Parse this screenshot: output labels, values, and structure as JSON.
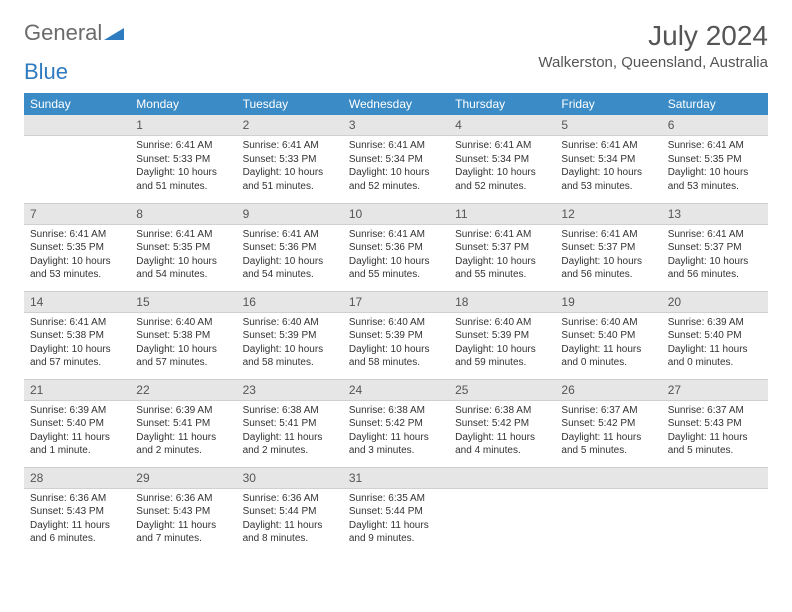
{
  "logo": {
    "word1": "General",
    "word2": "Blue"
  },
  "title": "July 2024",
  "location": "Walkerston, Queensland, Australia",
  "colors": {
    "header_bg": "#3b8bc6",
    "header_fg": "#ffffff",
    "daynum_bg": "#e6e6e6",
    "text": "#333333",
    "title": "#555555"
  },
  "weekdays": [
    "Sunday",
    "Monday",
    "Tuesday",
    "Wednesday",
    "Thursday",
    "Friday",
    "Saturday"
  ],
  "weeks": [
    [
      {
        "n": "",
        "sunrise": "",
        "sunset": "",
        "daylight": ""
      },
      {
        "n": "1",
        "sunrise": "Sunrise: 6:41 AM",
        "sunset": "Sunset: 5:33 PM",
        "daylight": "Daylight: 10 hours and 51 minutes."
      },
      {
        "n": "2",
        "sunrise": "Sunrise: 6:41 AM",
        "sunset": "Sunset: 5:33 PM",
        "daylight": "Daylight: 10 hours and 51 minutes."
      },
      {
        "n": "3",
        "sunrise": "Sunrise: 6:41 AM",
        "sunset": "Sunset: 5:34 PM",
        "daylight": "Daylight: 10 hours and 52 minutes."
      },
      {
        "n": "4",
        "sunrise": "Sunrise: 6:41 AM",
        "sunset": "Sunset: 5:34 PM",
        "daylight": "Daylight: 10 hours and 52 minutes."
      },
      {
        "n": "5",
        "sunrise": "Sunrise: 6:41 AM",
        "sunset": "Sunset: 5:34 PM",
        "daylight": "Daylight: 10 hours and 53 minutes."
      },
      {
        "n": "6",
        "sunrise": "Sunrise: 6:41 AM",
        "sunset": "Sunset: 5:35 PM",
        "daylight": "Daylight: 10 hours and 53 minutes."
      }
    ],
    [
      {
        "n": "7",
        "sunrise": "Sunrise: 6:41 AM",
        "sunset": "Sunset: 5:35 PM",
        "daylight": "Daylight: 10 hours and 53 minutes."
      },
      {
        "n": "8",
        "sunrise": "Sunrise: 6:41 AM",
        "sunset": "Sunset: 5:35 PM",
        "daylight": "Daylight: 10 hours and 54 minutes."
      },
      {
        "n": "9",
        "sunrise": "Sunrise: 6:41 AM",
        "sunset": "Sunset: 5:36 PM",
        "daylight": "Daylight: 10 hours and 54 minutes."
      },
      {
        "n": "10",
        "sunrise": "Sunrise: 6:41 AM",
        "sunset": "Sunset: 5:36 PM",
        "daylight": "Daylight: 10 hours and 55 minutes."
      },
      {
        "n": "11",
        "sunrise": "Sunrise: 6:41 AM",
        "sunset": "Sunset: 5:37 PM",
        "daylight": "Daylight: 10 hours and 55 minutes."
      },
      {
        "n": "12",
        "sunrise": "Sunrise: 6:41 AM",
        "sunset": "Sunset: 5:37 PM",
        "daylight": "Daylight: 10 hours and 56 minutes."
      },
      {
        "n": "13",
        "sunrise": "Sunrise: 6:41 AM",
        "sunset": "Sunset: 5:37 PM",
        "daylight": "Daylight: 10 hours and 56 minutes."
      }
    ],
    [
      {
        "n": "14",
        "sunrise": "Sunrise: 6:41 AM",
        "sunset": "Sunset: 5:38 PM",
        "daylight": "Daylight: 10 hours and 57 minutes."
      },
      {
        "n": "15",
        "sunrise": "Sunrise: 6:40 AM",
        "sunset": "Sunset: 5:38 PM",
        "daylight": "Daylight: 10 hours and 57 minutes."
      },
      {
        "n": "16",
        "sunrise": "Sunrise: 6:40 AM",
        "sunset": "Sunset: 5:39 PM",
        "daylight": "Daylight: 10 hours and 58 minutes."
      },
      {
        "n": "17",
        "sunrise": "Sunrise: 6:40 AM",
        "sunset": "Sunset: 5:39 PM",
        "daylight": "Daylight: 10 hours and 58 minutes."
      },
      {
        "n": "18",
        "sunrise": "Sunrise: 6:40 AM",
        "sunset": "Sunset: 5:39 PM",
        "daylight": "Daylight: 10 hours and 59 minutes."
      },
      {
        "n": "19",
        "sunrise": "Sunrise: 6:40 AM",
        "sunset": "Sunset: 5:40 PM",
        "daylight": "Daylight: 11 hours and 0 minutes."
      },
      {
        "n": "20",
        "sunrise": "Sunrise: 6:39 AM",
        "sunset": "Sunset: 5:40 PM",
        "daylight": "Daylight: 11 hours and 0 minutes."
      }
    ],
    [
      {
        "n": "21",
        "sunrise": "Sunrise: 6:39 AM",
        "sunset": "Sunset: 5:40 PM",
        "daylight": "Daylight: 11 hours and 1 minute."
      },
      {
        "n": "22",
        "sunrise": "Sunrise: 6:39 AM",
        "sunset": "Sunset: 5:41 PM",
        "daylight": "Daylight: 11 hours and 2 minutes."
      },
      {
        "n": "23",
        "sunrise": "Sunrise: 6:38 AM",
        "sunset": "Sunset: 5:41 PM",
        "daylight": "Daylight: 11 hours and 2 minutes."
      },
      {
        "n": "24",
        "sunrise": "Sunrise: 6:38 AM",
        "sunset": "Sunset: 5:42 PM",
        "daylight": "Daylight: 11 hours and 3 minutes."
      },
      {
        "n": "25",
        "sunrise": "Sunrise: 6:38 AM",
        "sunset": "Sunset: 5:42 PM",
        "daylight": "Daylight: 11 hours and 4 minutes."
      },
      {
        "n": "26",
        "sunrise": "Sunrise: 6:37 AM",
        "sunset": "Sunset: 5:42 PM",
        "daylight": "Daylight: 11 hours and 5 minutes."
      },
      {
        "n": "27",
        "sunrise": "Sunrise: 6:37 AM",
        "sunset": "Sunset: 5:43 PM",
        "daylight": "Daylight: 11 hours and 5 minutes."
      }
    ],
    [
      {
        "n": "28",
        "sunrise": "Sunrise: 6:36 AM",
        "sunset": "Sunset: 5:43 PM",
        "daylight": "Daylight: 11 hours and 6 minutes."
      },
      {
        "n": "29",
        "sunrise": "Sunrise: 6:36 AM",
        "sunset": "Sunset: 5:43 PM",
        "daylight": "Daylight: 11 hours and 7 minutes."
      },
      {
        "n": "30",
        "sunrise": "Sunrise: 6:36 AM",
        "sunset": "Sunset: 5:44 PM",
        "daylight": "Daylight: 11 hours and 8 minutes."
      },
      {
        "n": "31",
        "sunrise": "Sunrise: 6:35 AM",
        "sunset": "Sunset: 5:44 PM",
        "daylight": "Daylight: 11 hours and 9 minutes."
      },
      {
        "n": "",
        "sunrise": "",
        "sunset": "",
        "daylight": ""
      },
      {
        "n": "",
        "sunrise": "",
        "sunset": "",
        "daylight": ""
      },
      {
        "n": "",
        "sunrise": "",
        "sunset": "",
        "daylight": ""
      }
    ]
  ]
}
